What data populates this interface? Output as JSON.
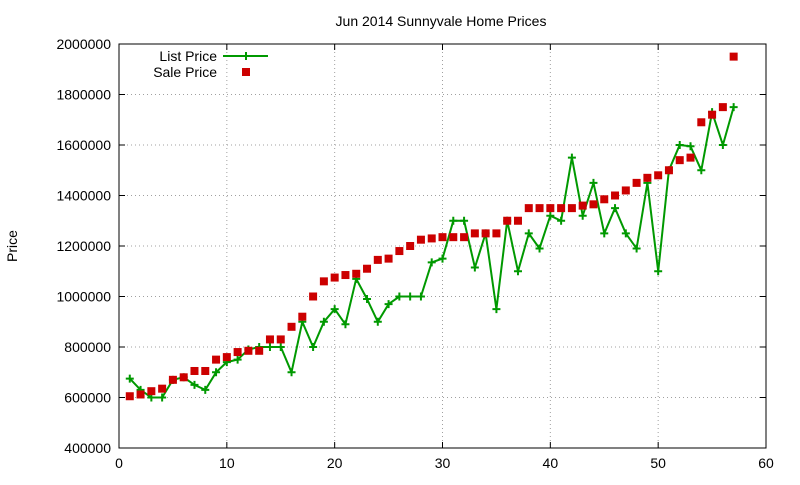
{
  "chart_data": {
    "type": "line",
    "title": "Jun 2014 Sunnyvale Home Prices",
    "xlabel": "",
    "ylabel": "Price",
    "xlim": [
      0,
      60
    ],
    "ylim": [
      400000,
      2000000
    ],
    "xticks": [
      0,
      10,
      20,
      30,
      40,
      50,
      60
    ],
    "yticks": [
      400000,
      600000,
      800000,
      1000000,
      1200000,
      1400000,
      1600000,
      1800000,
      2000000
    ],
    "grid": true,
    "legend_position": "top-left",
    "series": [
      {
        "name": "List Price",
        "style": "line-points",
        "marker": "plus",
        "color": "#009900",
        "x": [
          1,
          2,
          3,
          4,
          5,
          6,
          7,
          8,
          9,
          10,
          11,
          12,
          13,
          14,
          15,
          16,
          17,
          18,
          19,
          20,
          21,
          22,
          23,
          24,
          25,
          26,
          27,
          28,
          29,
          30,
          31,
          32,
          33,
          34,
          35,
          36,
          37,
          38,
          39,
          40,
          41,
          42,
          43,
          44,
          45,
          46,
          47,
          48,
          49,
          50,
          51,
          52,
          53,
          54,
          55,
          56,
          57
        ],
        "values": [
          675000,
          630000,
          600000,
          600000,
          670000,
          680000,
          650000,
          630000,
          700000,
          740000,
          750000,
          790000,
          800000,
          800000,
          800000,
          700000,
          900000,
          800000,
          900000,
          950000,
          890000,
          1070000,
          990000,
          900000,
          970000,
          1000000,
          1000000,
          1000000,
          1135000,
          1150000,
          1300000,
          1300000,
          1115000,
          1250000,
          950000,
          1300000,
          1100000,
          1250000,
          1190000,
          1320000,
          1300000,
          1550000,
          1320000,
          1450000,
          1250000,
          1350000,
          1250000,
          1190000,
          1450000,
          1100000,
          1500000,
          1600000,
          1595000,
          1500000,
          1730000,
          1600000,
          1750000
        ]
      },
      {
        "name": "Sale Price",
        "style": "points",
        "marker": "square",
        "color": "#cc0000",
        "x": [
          1,
          2,
          3,
          4,
          5,
          6,
          7,
          8,
          9,
          10,
          11,
          12,
          13,
          14,
          15,
          16,
          17,
          18,
          19,
          20,
          21,
          22,
          23,
          24,
          25,
          26,
          27,
          28,
          29,
          30,
          31,
          32,
          33,
          34,
          35,
          36,
          37,
          38,
          39,
          40,
          41,
          42,
          43,
          44,
          45,
          46,
          47,
          48,
          49,
          50,
          51,
          52,
          53,
          54,
          55,
          56,
          57
        ],
        "values": [
          605000,
          612000,
          625000,
          635000,
          670000,
          680000,
          705000,
          705000,
          750000,
          760000,
          780000,
          785000,
          785000,
          830000,
          830000,
          880000,
          920000,
          1000000,
          1060000,
          1075000,
          1085000,
          1090000,
          1110000,
          1145000,
          1150000,
          1180000,
          1200000,
          1225000,
          1230000,
          1235000,
          1235000,
          1235000,
          1250000,
          1250000,
          1250000,
          1300000,
          1300000,
          1350000,
          1350000,
          1350000,
          1350000,
          1350000,
          1360000,
          1365000,
          1385000,
          1400000,
          1420000,
          1450000,
          1470000,
          1480000,
          1500000,
          1540000,
          1550000,
          1690000,
          1720000,
          1750000,
          1950000
        ]
      }
    ]
  }
}
